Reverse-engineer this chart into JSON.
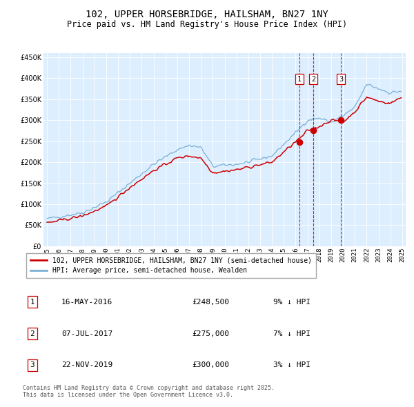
{
  "title": "102, UPPER HORSEBRIDGE, HAILSHAM, BN27 1NY",
  "subtitle": "Price paid vs. HM Land Registry's House Price Index (HPI)",
  "legend_red": "102, UPPER HORSEBRIDGE, HAILSHAM, BN27 1NY (semi-detached house)",
  "legend_blue": "HPI: Average price, semi-detached house, Wealden",
  "transactions": [
    {
      "num": 1,
      "date": "16-MAY-2016",
      "price": 248500,
      "pct": "9% ↓ HPI"
    },
    {
      "num": 2,
      "date": "07-JUL-2017",
      "price": 275000,
      "pct": "7% ↓ HPI"
    },
    {
      "num": 3,
      "date": "22-NOV-2019",
      "price": 300000,
      "pct": "3% ↓ HPI"
    }
  ],
  "footer": "Contains HM Land Registry data © Crown copyright and database right 2025.\nThis data is licensed under the Open Government Licence v3.0.",
  "red_color": "#cc0000",
  "blue_color": "#7ab0d4",
  "bg_plot": "#ddeeff",
  "bg_fig": "#ffffff",
  "ylim": [
    0,
    460000
  ],
  "yticks": [
    0,
    50000,
    100000,
    150000,
    200000,
    250000,
    300000,
    350000,
    400000,
    450000
  ],
  "year_start": 1995,
  "year_end": 2025
}
